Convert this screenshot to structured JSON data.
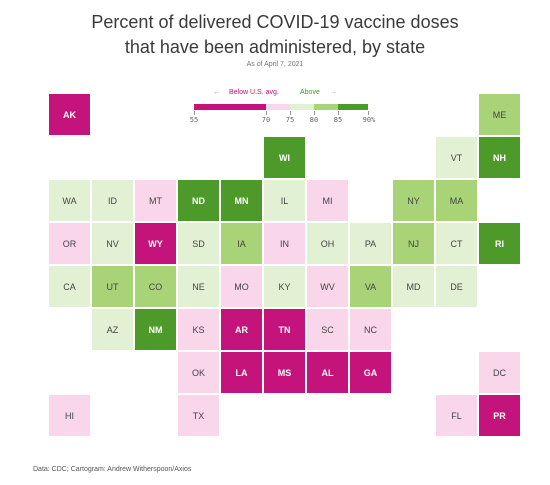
{
  "chart_data": {
    "type": "heatmap",
    "title_lines": [
      "Percent of delivered COVID-19 vaccine doses",
      "that have been administered, by state"
    ],
    "subtitle": "As of April 7, 2021",
    "legend": {
      "below_label": "Below U.S. avg.",
      "above_label": "Above",
      "ticks": [
        "55",
        "70",
        "75",
        "80",
        "85",
        "90%"
      ]
    },
    "source": "Data: CDC; Cartogram: Andrew Witherspoon/Axios",
    "colors": {
      "dark_magenta": "#c4137a",
      "light_pink": "#f9d6e9",
      "light_green": "#e2f0d4",
      "mid_green": "#a8d477",
      "dark_green": "#4d9a2a"
    },
    "states": [
      {
        "abbr": "AK",
        "row": 0,
        "col": 0,
        "bin": "dark_magenta"
      },
      {
        "abbr": "ME",
        "row": 0,
        "col": 10,
        "bin": "mid_green"
      },
      {
        "abbr": "WI",
        "row": 1,
        "col": 5,
        "bin": "dark_green"
      },
      {
        "abbr": "VT",
        "row": 1,
        "col": 9,
        "bin": "light_green"
      },
      {
        "abbr": "NH",
        "row": 1,
        "col": 10,
        "bin": "dark_green"
      },
      {
        "abbr": "WA",
        "row": 2,
        "col": 0,
        "bin": "light_green"
      },
      {
        "abbr": "ID",
        "row": 2,
        "col": 1,
        "bin": "light_green"
      },
      {
        "abbr": "MT",
        "row": 2,
        "col": 2,
        "bin": "light_pink"
      },
      {
        "abbr": "ND",
        "row": 2,
        "col": 3,
        "bin": "dark_green"
      },
      {
        "abbr": "MN",
        "row": 2,
        "col": 4,
        "bin": "dark_green"
      },
      {
        "abbr": "IL",
        "row": 2,
        "col": 5,
        "bin": "light_green"
      },
      {
        "abbr": "MI",
        "row": 2,
        "col": 6,
        "bin": "light_pink"
      },
      {
        "abbr": "NY",
        "row": 2,
        "col": 8,
        "bin": "mid_green"
      },
      {
        "abbr": "MA",
        "row": 2,
        "col": 9,
        "bin": "mid_green"
      },
      {
        "abbr": "OR",
        "row": 3,
        "col": 0,
        "bin": "light_pink"
      },
      {
        "abbr": "NV",
        "row": 3,
        "col": 1,
        "bin": "light_green"
      },
      {
        "abbr": "WY",
        "row": 3,
        "col": 2,
        "bin": "dark_magenta"
      },
      {
        "abbr": "SD",
        "row": 3,
        "col": 3,
        "bin": "light_green"
      },
      {
        "abbr": "IA",
        "row": 3,
        "col": 4,
        "bin": "mid_green"
      },
      {
        "abbr": "IN",
        "row": 3,
        "col": 5,
        "bin": "light_pink"
      },
      {
        "abbr": "OH",
        "row": 3,
        "col": 6,
        "bin": "light_green"
      },
      {
        "abbr": "PA",
        "row": 3,
        "col": 7,
        "bin": "light_green"
      },
      {
        "abbr": "NJ",
        "row": 3,
        "col": 8,
        "bin": "mid_green"
      },
      {
        "abbr": "CT",
        "row": 3,
        "col": 9,
        "bin": "light_green"
      },
      {
        "abbr": "RI",
        "row": 3,
        "col": 10,
        "bin": "dark_green"
      },
      {
        "abbr": "CA",
        "row": 4,
        "col": 0,
        "bin": "light_green"
      },
      {
        "abbr": "UT",
        "row": 4,
        "col": 1,
        "bin": "mid_green"
      },
      {
        "abbr": "CO",
        "row": 4,
        "col": 2,
        "bin": "mid_green"
      },
      {
        "abbr": "NE",
        "row": 4,
        "col": 3,
        "bin": "light_green"
      },
      {
        "abbr": "MO",
        "row": 4,
        "col": 4,
        "bin": "light_pink"
      },
      {
        "abbr": "KY",
        "row": 4,
        "col": 5,
        "bin": "light_green"
      },
      {
        "abbr": "WV",
        "row": 4,
        "col": 6,
        "bin": "light_pink"
      },
      {
        "abbr": "VA",
        "row": 4,
        "col": 7,
        "bin": "mid_green"
      },
      {
        "abbr": "MD",
        "row": 4,
        "col": 8,
        "bin": "light_green"
      },
      {
        "abbr": "DE",
        "row": 4,
        "col": 9,
        "bin": "light_green"
      },
      {
        "abbr": "AZ",
        "row": 5,
        "col": 1,
        "bin": "light_green"
      },
      {
        "abbr": "NM",
        "row": 5,
        "col": 2,
        "bin": "dark_green"
      },
      {
        "abbr": "KS",
        "row": 5,
        "col": 3,
        "bin": "light_pink"
      },
      {
        "abbr": "AR",
        "row": 5,
        "col": 4,
        "bin": "dark_magenta"
      },
      {
        "abbr": "TN",
        "row": 5,
        "col": 5,
        "bin": "dark_magenta"
      },
      {
        "abbr": "SC",
        "row": 5,
        "col": 6,
        "bin": "light_pink"
      },
      {
        "abbr": "NC",
        "row": 5,
        "col": 7,
        "bin": "light_pink"
      },
      {
        "abbr": "OK",
        "row": 6,
        "col": 3,
        "bin": "light_pink"
      },
      {
        "abbr": "LA",
        "row": 6,
        "col": 4,
        "bin": "dark_magenta"
      },
      {
        "abbr": "MS",
        "row": 6,
        "col": 5,
        "bin": "dark_magenta"
      },
      {
        "abbr": "AL",
        "row": 6,
        "col": 6,
        "bin": "dark_magenta"
      },
      {
        "abbr": "GA",
        "row": 6,
        "col": 7,
        "bin": "dark_magenta"
      },
      {
        "abbr": "DC",
        "row": 6,
        "col": 10,
        "bin": "light_pink"
      },
      {
        "abbr": "HI",
        "row": 7,
        "col": 0,
        "bin": "light_pink"
      },
      {
        "abbr": "TX",
        "row": 7,
        "col": 3,
        "bin": "light_pink"
      },
      {
        "abbr": "FL",
        "row": 7,
        "col": 9,
        "bin": "light_pink"
      },
      {
        "abbr": "PR",
        "row": 7,
        "col": 10,
        "bin": "dark_magenta"
      }
    ]
  }
}
